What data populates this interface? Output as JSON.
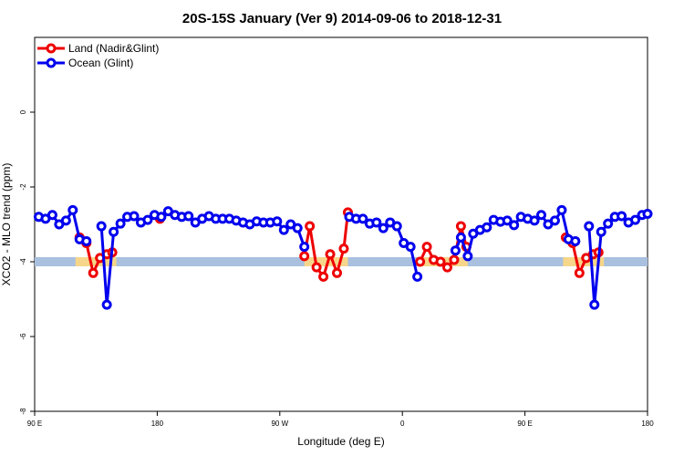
{
  "chart_data": {
    "type": "line",
    "title": "20S-15S January (Ver 9)   2014-09-06 to 2018-12-31",
    "xlabel": "Longitude (deg E)",
    "ylabel": "XCO2 - MLO trend (ppm)",
    "xlim": [
      90,
      540
    ],
    "ylim": [
      -8,
      2
    ],
    "x_ticks": [
      {
        "value": 90,
        "label": "90 E"
      },
      {
        "value": 180,
        "label": "180"
      },
      {
        "value": 270,
        "label": "90 W"
      },
      {
        "value": 360,
        "label": "0"
      },
      {
        "value": 450,
        "label": "90 E"
      },
      {
        "value": 540,
        "label": "180"
      }
    ],
    "y_ticks": [
      {
        "value": 0,
        "label": "0"
      },
      {
        "value": -2,
        "label": "-2"
      },
      {
        "value": -4,
        "label": "-4"
      },
      {
        "value": -6,
        "label": "-6"
      },
      {
        "value": -8,
        "label": "-8"
      }
    ],
    "legend_position": "top-left",
    "grid": false,
    "series": [
      {
        "name": "Land (Nadir&Glint)",
        "color": "#ee0000",
        "segments": [
          [
            [
              123,
              -3.35
            ],
            [
              128,
              -3.5
            ],
            [
              133,
              -4.3
            ],
            [
              138,
              -3.9
            ],
            [
              143,
              -3.8
            ],
            [
              147,
              -3.75
            ]
          ],
          [
            [
              182,
              -2.85
            ]
          ],
          [
            [
              288,
              -3.85
            ],
            [
              292,
              -3.05
            ],
            [
              297,
              -4.15
            ],
            [
              302,
              -4.4
            ],
            [
              307,
              -3.8
            ],
            [
              312,
              -4.3
            ],
            [
              317,
              -3.65
            ],
            [
              320,
              -2.68
            ]
          ],
          [
            [
              373,
              -4.0
            ],
            [
              378,
              -3.6
            ],
            [
              383,
              -3.95
            ],
            [
              388,
              -4.0
            ],
            [
              393,
              -4.15
            ],
            [
              398,
              -3.95
            ],
            [
              403,
              -3.05
            ],
            [
              407,
              -3.6
            ]
          ],
          [
            [
              480,
              -3.35
            ],
            [
              485,
              -3.5
            ],
            [
              490,
              -4.3
            ],
            [
              495,
              -3.9
            ],
            [
              500,
              -3.8
            ],
            [
              504,
              -3.75
            ]
          ]
        ]
      },
      {
        "name": "Ocean (Glint)",
        "color": "#0000ee",
        "segments": [
          [
            [
              93,
              -2.8
            ],
            [
              98,
              -2.85
            ],
            [
              103,
              -2.75
            ],
            [
              108,
              -3.0
            ],
            [
              113,
              -2.9
            ],
            [
              118,
              -2.62
            ],
            [
              123,
              -3.4
            ],
            [
              128,
              -3.45
            ]
          ],
          [
            [
              139,
              -3.05
            ],
            [
              143,
              -5.15
            ],
            [
              148,
              -3.2
            ],
            [
              153,
              -2.98
            ],
            [
              158,
              -2.8
            ],
            [
              163,
              -2.78
            ],
            [
              168,
              -2.95
            ],
            [
              173,
              -2.88
            ],
            [
              178,
              -2.75
            ],
            [
              183,
              -2.8
            ],
            [
              188,
              -2.65
            ],
            [
              193,
              -2.75
            ],
            [
              198,
              -2.8
            ],
            [
              203,
              -2.78
            ],
            [
              208,
              -2.95
            ],
            [
              213,
              -2.85
            ],
            [
              218,
              -2.78
            ],
            [
              223,
              -2.85
            ],
            [
              228,
              -2.85
            ],
            [
              233,
              -2.85
            ],
            [
              238,
              -2.9
            ],
            [
              243,
              -2.95
            ],
            [
              248,
              -3.0
            ],
            [
              253,
              -2.92
            ],
            [
              258,
              -2.95
            ],
            [
              263,
              -2.95
            ],
            [
              268,
              -2.92
            ],
            [
              273,
              -3.15
            ],
            [
              278,
              -3.0
            ],
            [
              283,
              -3.1
            ],
            [
              288,
              -3.6
            ]
          ],
          [
            [
              321,
              -2.8
            ],
            [
              326,
              -2.85
            ],
            [
              331,
              -2.85
            ],
            [
              336,
              -2.98
            ],
            [
              341,
              -2.95
            ],
            [
              346,
              -3.1
            ],
            [
              351,
              -2.95
            ],
            [
              356,
              -3.05
            ],
            [
              361,
              -3.5
            ],
            [
              366,
              -3.6
            ],
            [
              371,
              -4.4
            ]
          ],
          [
            [
              399,
              -3.7
            ],
            [
              403,
              -3.35
            ],
            [
              408,
              -3.85
            ],
            [
              412,
              -3.25
            ],
            [
              417,
              -3.15
            ],
            [
              422,
              -3.08
            ],
            [
              427,
              -2.88
            ],
            [
              432,
              -2.93
            ],
            [
              437,
              -2.9
            ],
            [
              442,
              -3.02
            ],
            [
              447,
              -2.8
            ],
            [
              452,
              -2.85
            ],
            [
              457,
              -2.9
            ],
            [
              462,
              -2.75
            ],
            [
              467,
              -3.0
            ],
            [
              472,
              -2.9
            ],
            [
              477,
              -2.62
            ],
            [
              482,
              -3.4
            ],
            [
              487,
              -3.45
            ]
          ],
          [
            [
              497,
              -3.05
            ],
            [
              501,
              -5.15
            ],
            [
              506,
              -3.2
            ],
            [
              511,
              -2.98
            ],
            [
              516,
              -2.8
            ],
            [
              521,
              -2.78
            ],
            [
              526,
              -2.95
            ],
            [
              531,
              -2.88
            ],
            [
              536,
              -2.75
            ],
            [
              540,
              -2.72
            ]
          ]
        ]
      }
    ],
    "coverage_band": {
      "y": -4.0,
      "ocean_color": "#a9c0df",
      "land_color": "#f6d68a",
      "land_ranges": [
        [
          120,
          150
        ],
        [
          288,
          320
        ],
        [
          372,
          408
        ],
        [
          478,
          508
        ]
      ]
    }
  }
}
